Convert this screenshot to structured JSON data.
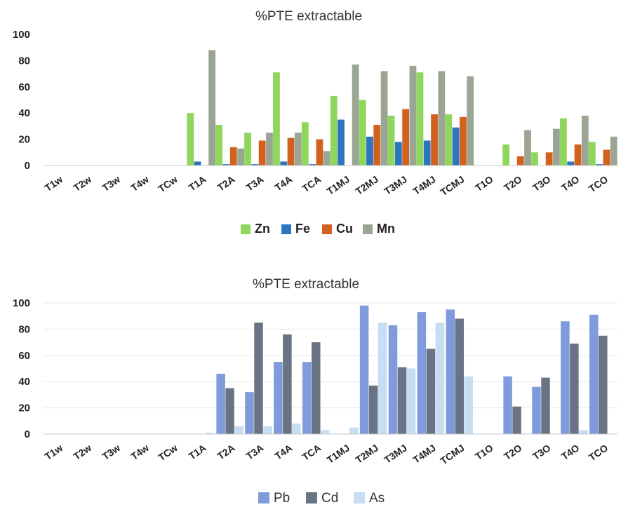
{
  "chart_data": [
    {
      "type": "bar",
      "title": "%PTE extractable",
      "categories": [
        "T1w",
        "T2w",
        "T3w",
        "T4w",
        "TCw",
        "T1A",
        "T2A",
        "T3A",
        "T4A",
        "TCA",
        "T1MJ",
        "T2MJ",
        "T3MJ",
        "T4MJ",
        "TCMJ",
        "T1O",
        "T2O",
        "T3O",
        "T4O",
        "TCO"
      ],
      "ylim": [
        0,
        100
      ],
      "yticks": [
        "0",
        "20",
        "40",
        "60",
        "80",
        "100"
      ],
      "grid": false,
      "legend": "bottom",
      "series": [
        {
          "name": "Zn",
          "color": "#8ed65c",
          "values": [
            0,
            0,
            0,
            0,
            0,
            40,
            31,
            25,
            71,
            33,
            53,
            50,
            38,
            71,
            39,
            0,
            16,
            10,
            36,
            18
          ]
        },
        {
          "name": "Fe",
          "color": "#2e75c0",
          "values": [
            0,
            0,
            0,
            0,
            0,
            3,
            1,
            1,
            3,
            1,
            35,
            22,
            18,
            19,
            29,
            0,
            0,
            0,
            3,
            1
          ]
        },
        {
          "name": "Cu",
          "color": "#d2601e",
          "values": [
            0,
            0,
            0,
            0,
            0,
            0,
            14,
            19,
            21,
            20,
            0,
            31,
            43,
            39,
            37,
            0,
            7,
            10,
            16,
            12
          ]
        },
        {
          "name": "Mn",
          "color": "#9aa594",
          "values": [
            0,
            0,
            0,
            0,
            0,
            88,
            13,
            25,
            25,
            11,
            77,
            72,
            76,
            72,
            68,
            0,
            27,
            28,
            38,
            22
          ]
        }
      ]
    },
    {
      "type": "bar",
      "title": "%PTE extractable",
      "categories": [
        "T1w",
        "T2w",
        "T3w",
        "T4w",
        "TCw",
        "T1A",
        "T2A",
        "T3A",
        "T4A",
        "TCA",
        "T1MJ",
        "T2MJ",
        "T3MJ",
        "T4MJ",
        "TCMJ",
        "T1O",
        "T2O",
        "T3O",
        "T4O",
        "TCO"
      ],
      "ylim": [
        0,
        100
      ],
      "yticks": [
        "0",
        "20",
        "40",
        "60",
        "80",
        "100"
      ],
      "grid": true,
      "legend": "bottom",
      "series": [
        {
          "name": "Pb",
          "color": "#7f9bdc",
          "values": [
            0,
            0,
            0,
            0,
            0,
            0,
            46,
            32,
            55,
            55,
            0,
            98,
            83,
            93,
            95,
            0,
            44,
            36,
            86,
            91
          ]
        },
        {
          "name": "Cd",
          "color": "#6a7384",
          "values": [
            0,
            0,
            0,
            0,
            0,
            0,
            35,
            85,
            76,
            70,
            0,
            37,
            51,
            65,
            88,
            0,
            21,
            43,
            69,
            75
          ]
        },
        {
          "name": "As",
          "color": "#c7ddf1",
          "values": [
            0,
            0,
            0,
            0,
            0,
            1,
            6,
            6,
            8,
            3,
            5,
            85,
            50,
            85,
            44,
            0,
            0,
            0,
            3,
            0
          ]
        }
      ]
    }
  ]
}
